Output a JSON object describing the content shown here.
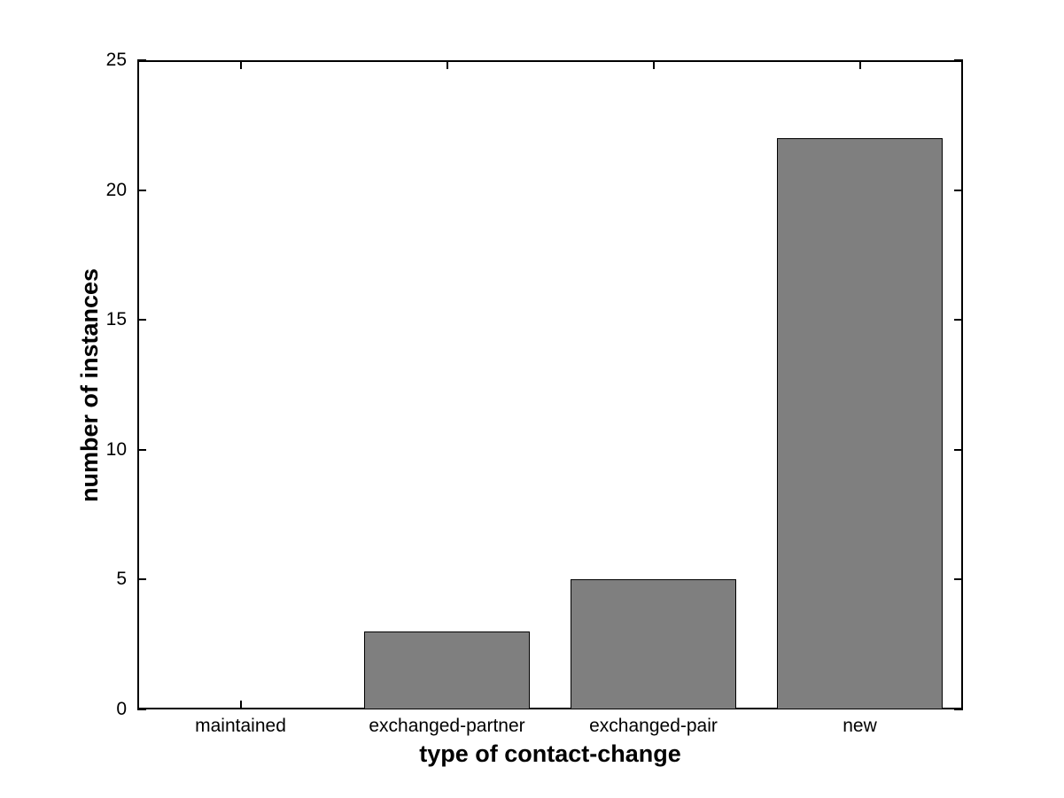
{
  "chart_data": {
    "type": "bar",
    "categories": [
      "maintained",
      "exchanged-partner",
      "exchanged-pair",
      "new"
    ],
    "values": [
      0,
      3,
      5,
      22
    ],
    "title": "",
    "xlabel": "type of contact-change",
    "ylabel": "number of instances",
    "yticks": [
      0,
      5,
      10,
      15,
      20,
      25
    ],
    "ytick_labels": [
      "0",
      "5",
      "10",
      "15",
      "20",
      "25"
    ],
    "ylim": [
      0,
      25
    ],
    "bar_width_fraction": 0.8,
    "bar_color": "#7f7f7f",
    "bar_edge_color": "#000000",
    "axis_color": "#000000",
    "background_color": "#ffffff",
    "grid": false,
    "legend": null,
    "box": true,
    "tick_direction": "in"
  }
}
